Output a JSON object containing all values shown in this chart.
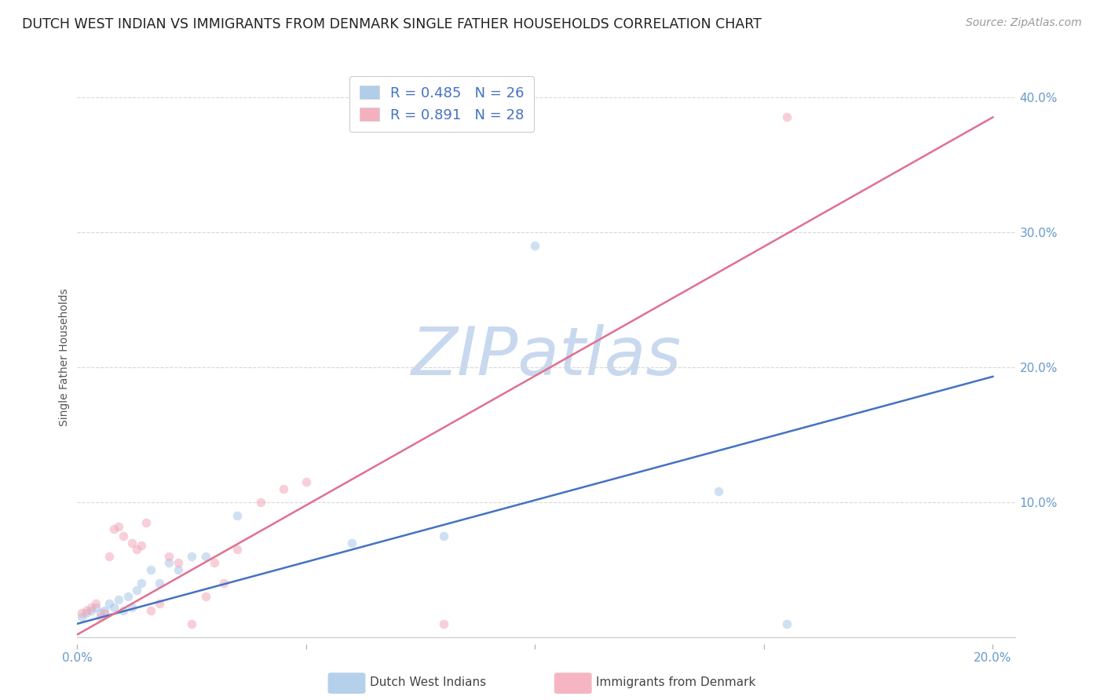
{
  "title": "DUTCH WEST INDIAN VS IMMIGRANTS FROM DENMARK SINGLE FATHER HOUSEHOLDS CORRELATION CHART",
  "source": "Source: ZipAtlas.com",
  "ylabel": "Single Father Households",
  "watermark": "ZIPatlas",
  "x_ticks": [
    0.0,
    0.05,
    0.1,
    0.15,
    0.2
  ],
  "x_tick_labels": [
    "0.0%",
    "",
    "",
    "",
    "20.0%"
  ],
  "y_ticks": [
    0.0,
    0.1,
    0.2,
    0.3,
    0.4
  ],
  "y_tick_labels_right": [
    "",
    "10.0%",
    "20.0%",
    "30.0%",
    "40.0%"
  ],
  "xlim": [
    0.0,
    0.205
  ],
  "ylim": [
    -0.005,
    0.42
  ],
  "blue_scatter_x": [
    0.001,
    0.002,
    0.003,
    0.004,
    0.005,
    0.006,
    0.007,
    0.008,
    0.009,
    0.01,
    0.011,
    0.012,
    0.013,
    0.014,
    0.016,
    0.018,
    0.02,
    0.022,
    0.025,
    0.028,
    0.035,
    0.06,
    0.08,
    0.1,
    0.14,
    0.155
  ],
  "blue_scatter_y": [
    0.015,
    0.018,
    0.02,
    0.022,
    0.018,
    0.02,
    0.025,
    0.022,
    0.028,
    0.02,
    0.03,
    0.022,
    0.035,
    0.04,
    0.05,
    0.04,
    0.055,
    0.05,
    0.06,
    0.06,
    0.09,
    0.07,
    0.075,
    0.29,
    0.108,
    0.01
  ],
  "pink_scatter_x": [
    0.001,
    0.002,
    0.003,
    0.004,
    0.005,
    0.006,
    0.007,
    0.008,
    0.009,
    0.01,
    0.012,
    0.013,
    0.014,
    0.015,
    0.016,
    0.018,
    0.02,
    0.022,
    0.025,
    0.028,
    0.03,
    0.032,
    0.035,
    0.04,
    0.045,
    0.05,
    0.08,
    0.155
  ],
  "pink_scatter_y": [
    0.018,
    0.02,
    0.022,
    0.025,
    0.015,
    0.018,
    0.06,
    0.08,
    0.082,
    0.075,
    0.07,
    0.065,
    0.068,
    0.085,
    0.02,
    0.025,
    0.06,
    0.055,
    0.01,
    0.03,
    0.055,
    0.04,
    0.065,
    0.1,
    0.11,
    0.115,
    0.01,
    0.385
  ],
  "blue_line_x": [
    0.0,
    0.2
  ],
  "blue_line_y": [
    0.01,
    0.193
  ],
  "pink_line_x": [
    0.0,
    0.2
  ],
  "pink_line_y": [
    0.002,
    0.385
  ],
  "legend_blue_label_r": "R = 0.485",
  "legend_blue_label_n": "N = 26",
  "legend_pink_label_r": "R = 0.891",
  "legend_pink_label_n": "N = 28",
  "scatter_blue_color": "#a8c8e8",
  "scatter_pink_color": "#f4a8b8",
  "line_blue_color": "#4472c4",
  "line_pink_color": "#e07090",
  "background_color": "#ffffff",
  "grid_color": "#d8d8d8",
  "title_color": "#222222",
  "source_color": "#999999",
  "watermark_color": "#c8d8ee",
  "axis_tick_color": "#6699cc",
  "scatter_size": 70,
  "scatter_alpha": 0.55,
  "line_width": 1.8
}
